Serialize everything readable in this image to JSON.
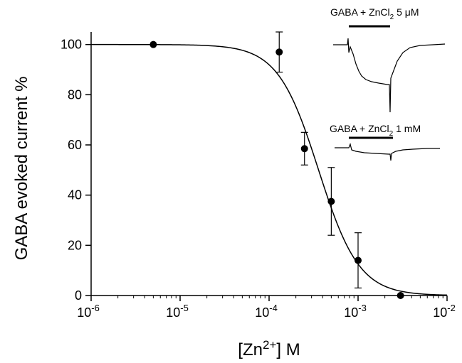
{
  "chart_data": {
    "type": "scatter",
    "xlabel": "[Zn2+] M",
    "xlabel_parts": {
      "prefix": "[Zn",
      "superscript": "2+",
      "suffix": "] M"
    },
    "ylabel": "GABA evoked current %",
    "xscale": "log",
    "xlim": [
      1e-06,
      0.01
    ],
    "ylim": [
      0,
      105
    ],
    "x_ticks": [
      {
        "base": "10",
        "exp": "-6",
        "value": 1e-06
      },
      {
        "base": "10",
        "exp": "-5",
        "value": 1e-05
      },
      {
        "base": "10",
        "exp": "-4",
        "value": 0.0001
      },
      {
        "base": "10",
        "exp": "-3",
        "value": 0.001
      },
      {
        "base": "10",
        "exp": "-2",
        "value": 0.01
      }
    ],
    "y_ticks": [
      "0",
      "20",
      "40",
      "60",
      "80",
      "100"
    ],
    "series": [
      {
        "points": [
          {
            "x": 5e-06,
            "y": 100,
            "err": 0
          },
          {
            "x": 0.00013,
            "y": 97,
            "err": 8
          },
          {
            "x": 0.00025,
            "y": 58.5,
            "err": 6.5
          },
          {
            "x": 0.0005,
            "y": 37.5,
            "err": 13.5
          },
          {
            "x": 0.001,
            "y": 14,
            "err": 11
          },
          {
            "x": 0.003,
            "y": 0,
            "err": 0
          }
        ]
      }
    ],
    "fit": {
      "type": "logistic",
      "top": 100,
      "bottom": 0,
      "ic50": 0.00036,
      "hill": 1.9
    },
    "insets": [
      {
        "label": "GABA + ZnCl",
        "sub": "2",
        "conc": " 5 μM"
      },
      {
        "label": "GABA + ZnCl",
        "sub": "2",
        "conc": " 1 mM"
      }
    ],
    "grid": false
  }
}
